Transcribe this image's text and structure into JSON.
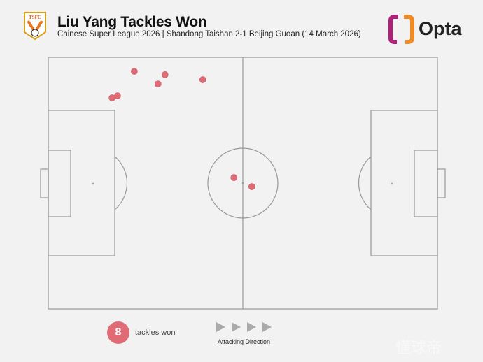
{
  "header": {
    "title": "Liu Yang Tackles Won",
    "subtitle": "Chinese Super League 2026 | Shandong Taishan 2-1 Beijing Guoan (14 March 2026)",
    "club_badge": "TSFC",
    "brand": "Opta"
  },
  "legend": {
    "count": "8",
    "label": "tackles won",
    "direction_label": "Attacking Direction",
    "direction": "right"
  },
  "watermark": "懂球帝",
  "colors": {
    "marker": "#e06b75",
    "pitch_lines": "#999999",
    "background": "#f2f2f2"
  },
  "chart_data": {
    "type": "scatter",
    "description_units": "pitch coordinates 0-100 (x along length, attacking right; y from top)",
    "xlim": [
      0,
      100
    ],
    "ylim": [
      0,
      100
    ],
    "points": [
      {
        "x": 22.1,
        "y": 5.6
      },
      {
        "x": 30.0,
        "y": 6.9
      },
      {
        "x": 28.2,
        "y": 10.6
      },
      {
        "x": 39.7,
        "y": 8.9
      },
      {
        "x": 16.4,
        "y": 16.1
      },
      {
        "x": 17.8,
        "y": 15.3
      },
      {
        "x": 47.7,
        "y": 47.8
      },
      {
        "x": 52.3,
        "y": 51.4
      }
    ]
  }
}
